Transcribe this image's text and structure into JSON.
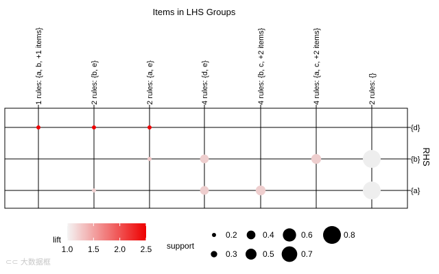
{
  "chart_data": {
    "type": "grouped-matrix-bubble",
    "title": "Items in LHS Groups",
    "right_axis_label": "RHS",
    "lhs_groups": [
      "1 rules: {a, b, +1 items}",
      "2 rules: {b, e}",
      "2 rules: {a, e}",
      "4 rules: {d, e}",
      "4 rules: {b, c, +2 items}",
      "4 rules: {a, c, +2 items}",
      "2 rules: {}"
    ],
    "rhs_items": [
      "{d}",
      "{b}",
      "{a}"
    ],
    "points": [
      {
        "lhs": 0,
        "rhs": 0,
        "support": 0.2,
        "lift": 2.5
      },
      {
        "lhs": 1,
        "rhs": 0,
        "support": 0.2,
        "lift": 2.5
      },
      {
        "lhs": 2,
        "rhs": 0,
        "support": 0.2,
        "lift": 2.5
      },
      {
        "lhs": 2,
        "rhs": 1,
        "support": 0.2,
        "lift": 1.25
      },
      {
        "lhs": 3,
        "rhs": 1,
        "support": 0.4,
        "lift": 1.2
      },
      {
        "lhs": 5,
        "rhs": 1,
        "support": 0.45,
        "lift": 1.2
      },
      {
        "lhs": 6,
        "rhs": 1,
        "support": 0.8,
        "lift": 1.0
      },
      {
        "lhs": 1,
        "rhs": 2,
        "support": 0.2,
        "lift": 1.2
      },
      {
        "lhs": 3,
        "rhs": 2,
        "support": 0.4,
        "lift": 1.2
      },
      {
        "lhs": 4,
        "rhs": 2,
        "support": 0.45,
        "lift": 1.2
      },
      {
        "lhs": 6,
        "rhs": 2,
        "support": 0.8,
        "lift": 1.0
      }
    ],
    "lift_legend": {
      "title": "lift",
      "range": [
        1.0,
        2.5
      ],
      "ticks": [
        "1.0",
        "1.5",
        "2.0",
        "2.5"
      ],
      "colors": {
        "low": "#eeeeee",
        "high": "#ee0000"
      }
    },
    "support_legend": {
      "title": "support",
      "values": [
        0.2,
        0.3,
        0.4,
        0.5,
        0.6,
        0.7,
        0.8
      ],
      "labels": [
        "0.2",
        "0.3",
        "0.4",
        "0.5",
        "0.6",
        "0.7",
        "0.8"
      ]
    }
  },
  "watermark": "⊂⊂ 大数据框"
}
